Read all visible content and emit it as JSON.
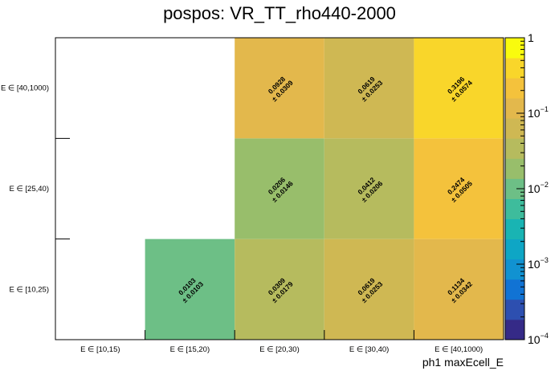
{
  "chart_data": {
    "type": "heatmap",
    "title": "pospos: VR_TT_rho440-2000",
    "xlabel": "ph1 maxEcell_E",
    "ylabel": "",
    "x_categories": [
      "E ∈ [10,15)",
      "E ∈ [15,20)",
      "E ∈ [20,30)",
      "E ∈ [30,40)",
      "E ∈ [40,1000)"
    ],
    "y_categories": [
      "E ∈ [10,25)",
      "E ∈ [25,40)",
      "E ∈ [40,1000)"
    ],
    "colorbar": {
      "scale": "log",
      "range": [
        0.0001,
        1
      ],
      "tick_labels": [
        {
          "base": "1",
          "exp": "",
          "value": 1
        },
        {
          "base": "10",
          "exp": "−1",
          "value": 0.1
        },
        {
          "base": "10",
          "exp": "−2",
          "value": 0.01
        },
        {
          "base": "10",
          "exp": "−3",
          "value": 0.001
        },
        {
          "base": "10",
          "exp": "−4",
          "value": 0.0001
        }
      ]
    },
    "cells": [
      {
        "x": 1,
        "y": 0,
        "value": 0.0103,
        "error": 0.0103,
        "label": "0.0103",
        "error_label": "± 0.0103"
      },
      {
        "x": 2,
        "y": 0,
        "value": 0.0309,
        "error": 0.0179,
        "label": "0.0309",
        "error_label": "± 0.0179"
      },
      {
        "x": 3,
        "y": 0,
        "value": 0.0619,
        "error": 0.0253,
        "label": "0.0619",
        "error_label": "± 0.0253"
      },
      {
        "x": 4,
        "y": 0,
        "value": 0.1134,
        "error": 0.0342,
        "label": "0.1134",
        "error_label": "± 0.0342"
      },
      {
        "x": 2,
        "y": 1,
        "value": 0.0206,
        "error": 0.0146,
        "label": "0.0206",
        "error_label": "± 0.0146"
      },
      {
        "x": 3,
        "y": 1,
        "value": 0.0412,
        "error": 0.0206,
        "label": "0.0412",
        "error_label": "± 0.0206"
      },
      {
        "x": 4,
        "y": 1,
        "value": 0.2474,
        "error": 0.0505,
        "label": "0.2474",
        "error_label": "± 0.0505"
      },
      {
        "x": 2,
        "y": 2,
        "value": 0.0928,
        "error": 0.0309,
        "label": "0.0928",
        "error_label": "± 0.0309"
      },
      {
        "x": 3,
        "y": 2,
        "value": 0.0619,
        "error": 0.0253,
        "label": "0.0619",
        "error_label": "± 0.0253"
      },
      {
        "x": 4,
        "y": 2,
        "value": 0.3196,
        "error": 0.0574,
        "label": "0.3196",
        "error_label": "± 0.0574"
      }
    ],
    "palette": [
      "#352a87",
      "#2d4fb0",
      "#1173d4",
      "#1192d1",
      "#0ea6c5",
      "#19b4b3",
      "#3ebc9c",
      "#6dbf86",
      "#98be6b",
      "#b6bb5e",
      "#cfb853",
      "#e3b84c",
      "#f4c23c",
      "#f9d62a",
      "#f9fb0e"
    ]
  }
}
